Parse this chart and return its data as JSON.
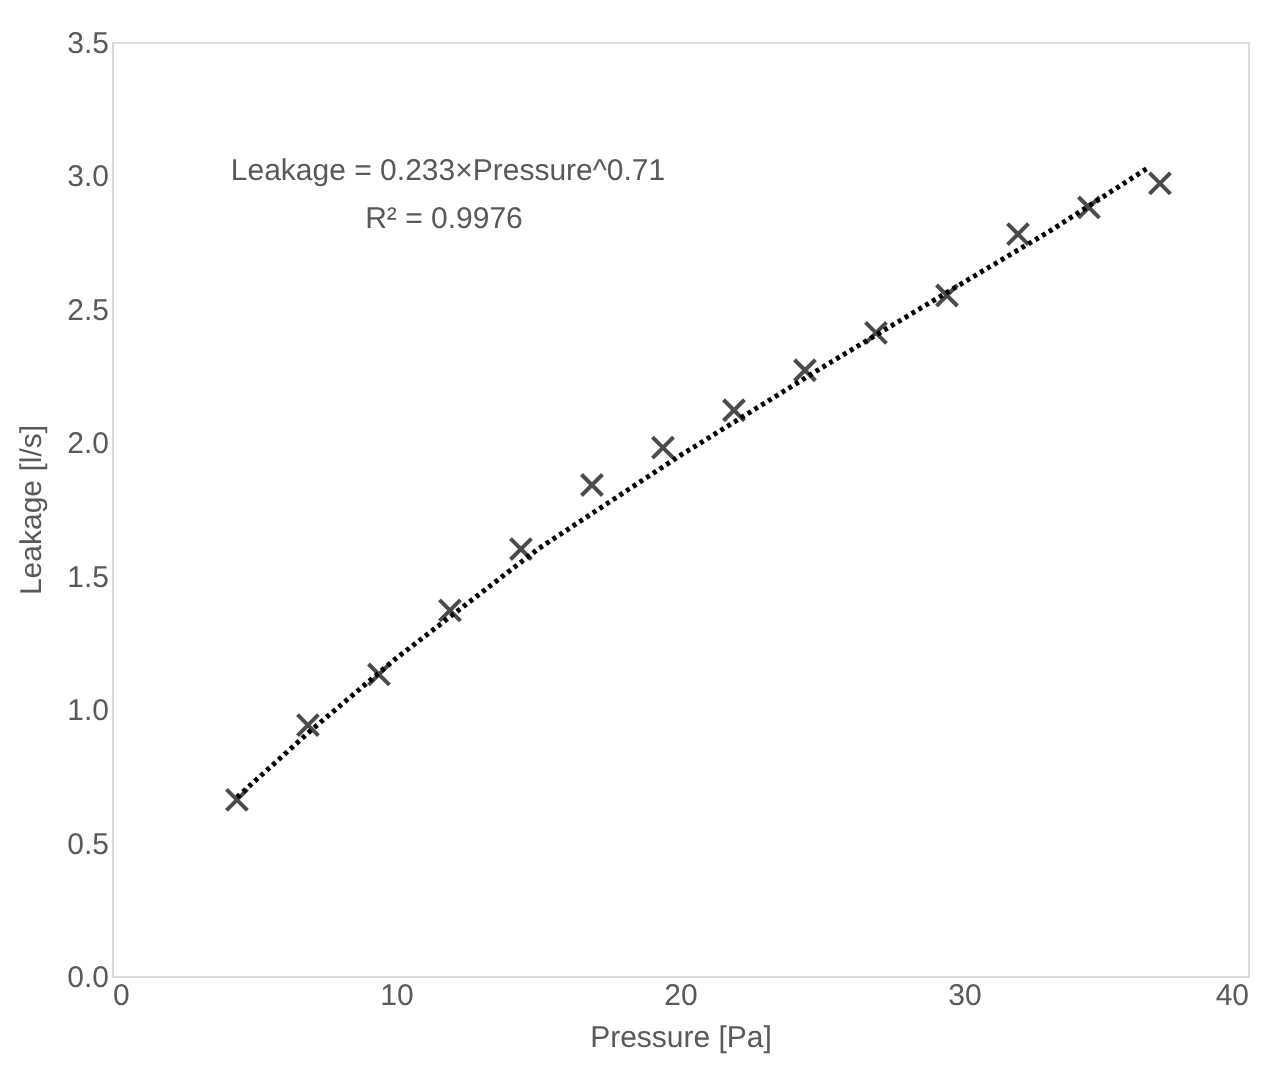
{
  "chart_data": {
    "type": "scatter",
    "xlabel": "Pressure [Pa]",
    "ylabel": "Leakage [l/s]",
    "xlim": [
      0,
      40
    ],
    "xticks": [
      0,
      10,
      20,
      30,
      40
    ],
    "ylim": [
      0,
      3.5
    ],
    "yticks": [
      {
        "value": 0,
        "label": "0.0"
      },
      0.5,
      {
        "value": 1,
        "label": "1.0"
      },
      1.5,
      {
        "value": 2,
        "label": "2.0"
      },
      2.5,
      {
        "value": 3,
        "label": "3.0"
      },
      3.5
    ],
    "grid": false,
    "annotations": [
      "Leakage = 0.233×Pressure^0.71",
      "R² = 0.9976"
    ],
    "series": [
      {
        "marker": "cross",
        "color": "#000000",
        "x": [
          4.4,
          6.9,
          9.4,
          11.9,
          14.4,
          16.9,
          19.4,
          21.9,
          24.4,
          26.9,
          29.4,
          31.9,
          34.4,
          36.9
        ],
        "values": [
          0.66,
          0.94,
          1.13,
          1.37,
          1.6,
          1.84,
          1.98,
          2.12,
          2.27,
          2.41,
          2.55,
          2.78,
          2.88,
          2.97
        ]
      },
      {
        "type": "line",
        "line_style": "dotted",
        "color": "#000000",
        "x": [
          4.4,
          7,
          10,
          15,
          20,
          25,
          30,
          33,
          36.5
        ],
        "values": [
          0.67,
          0.92,
          1.19,
          1.6,
          1.95,
          2.28,
          2.6,
          2.79,
          3.03
        ]
      }
    ]
  }
}
